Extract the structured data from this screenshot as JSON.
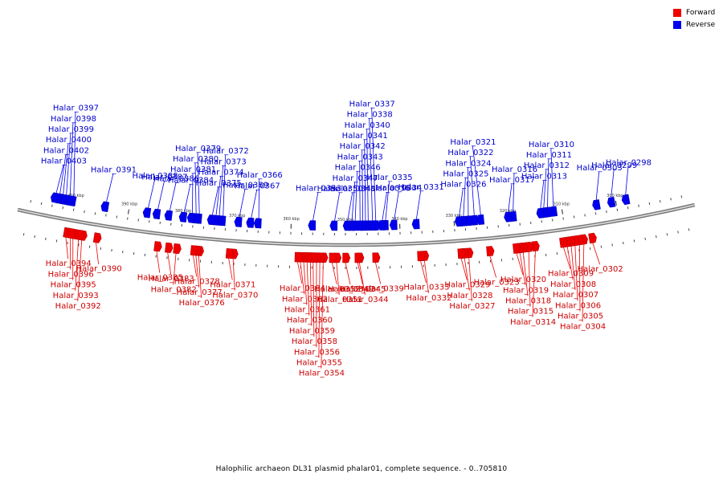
{
  "caption": "Halophilic archaeon DL31 plasmid phalar01, complete sequence. - 0..705810",
  "legend": {
    "forward_label": "Forward",
    "reverse_label": "Reverse",
    "forward_color": "#ee0000",
    "reverse_color": "#0000ee"
  },
  "scale": [
    {
      "label": "300 kbp",
      "pos": 300
    },
    {
      "label": "310 kbp",
      "pos": 310
    },
    {
      "label": "320 kbp",
      "pos": 320
    },
    {
      "label": "330 kbp",
      "pos": 330
    },
    {
      "label": "340 kbp",
      "pos": 340
    },
    {
      "label": "350 kbp",
      "pos": 350
    },
    {
      "label": "360 kbp",
      "pos": 360
    },
    {
      "label": "370 kbp",
      "pos": 370
    },
    {
      "label": "380 kbp",
      "pos": 380
    },
    {
      "label": "390 kbp",
      "pos": 390
    },
    {
      "label": "400 kbp",
      "pos": 400
    }
  ],
  "forward_genes": [
    {
      "name": "Halar_0302",
      "pos": 305.4
    },
    {
      "name": "Halar_0304",
      "pos": 307.0
    },
    {
      "name": "Halar_0305",
      "pos": 307.8
    },
    {
      "name": "Halar_0306",
      "pos": 308.6
    },
    {
      "name": "Halar_0307",
      "pos": 309.3
    },
    {
      "name": "Halar_0308",
      "pos": 310.0
    },
    {
      "name": "Halar_0309",
      "pos": 310.7
    },
    {
      "name": "Halar_0314",
      "pos": 315.8
    },
    {
      "name": "Halar_0315",
      "pos": 317.0
    },
    {
      "name": "Halar_0318",
      "pos": 318.0
    },
    {
      "name": "Halar_0319",
      "pos": 318.6
    },
    {
      "name": "Halar_0320",
      "pos": 319.2
    },
    {
      "name": "Halar_0323",
      "pos": 324.0
    },
    {
      "name": "Halar_0327",
      "pos": 327.8
    },
    {
      "name": "Halar_0328",
      "pos": 328.6
    },
    {
      "name": "Halar_0329",
      "pos": 329.2
    },
    {
      "name": "Halar_0332",
      "pos": 335.8
    },
    {
      "name": "Halar_0333",
      "pos": 336.5
    },
    {
      "name": "Halar_0339",
      "pos": 344.6
    },
    {
      "name": "Halar_0344",
      "pos": 347.5
    },
    {
      "name": "Halar_0345",
      "pos": 347.8
    },
    {
      "name": "Halar_0349",
      "pos": 350.0
    },
    {
      "name": "Halar_0351",
      "pos": 351.6
    },
    {
      "name": "Halar_0352",
      "pos": 352.4
    },
    {
      "name": "Halar_0354",
      "pos": 354.0
    },
    {
      "name": "Halar_0355",
      "pos": 354.6
    },
    {
      "name": "Halar_0356",
      "pos": 355.2
    },
    {
      "name": "Halar_0358",
      "pos": 355.8
    },
    {
      "name": "Halar_0359",
      "pos": 356.3
    },
    {
      "name": "Halar_0360",
      "pos": 356.9
    },
    {
      "name": "Halar_0361",
      "pos": 357.5
    },
    {
      "name": "Halar_0362",
      "pos": 358.1
    },
    {
      "name": "Halar_0364",
      "pos": 358.6
    },
    {
      "name": "Halar_0370",
      "pos": 370.2
    },
    {
      "name": "Halar_0371",
      "pos": 371.0
    },
    {
      "name": "Halar_0376",
      "pos": 376.4
    },
    {
      "name": "Halar_0377",
      "pos": 376.9
    },
    {
      "name": "Halar_0378",
      "pos": 377.4
    },
    {
      "name": "Halar_0382",
      "pos": 380.5
    },
    {
      "name": "Halar_0383",
      "pos": 382.0
    },
    {
      "name": "Halar_0385",
      "pos": 384.0
    },
    {
      "name": "Halar_0390",
      "pos": 395.0
    },
    {
      "name": "Halar_0392",
      "pos": 397.6
    },
    {
      "name": "Halar_0393",
      "pos": 398.2
    },
    {
      "name": "Halar_0394",
      "pos": 400.5
    },
    {
      "name": "Halar_0395",
      "pos": 399.2
    },
    {
      "name": "Halar_0396",
      "pos": 399.7
    }
  ],
  "reverse_genes": [
    {
      "name": "Halar_0298",
      "pos": 298.0
    },
    {
      "name": "Halar_0299",
      "pos": 300.7
    },
    {
      "name": "Halar_0303",
      "pos": 303.5
    },
    {
      "name": "Halar_0310",
      "pos": 311.5
    },
    {
      "name": "Halar_0311",
      "pos": 312.6
    },
    {
      "name": "Halar_0312",
      "pos": 313.3
    },
    {
      "name": "Halar_0313",
      "pos": 313.9
    },
    {
      "name": "Halar_0316",
      "pos": 319.0
    },
    {
      "name": "Halar_0317",
      "pos": 319.9
    },
    {
      "name": "Halar_0321",
      "pos": 325.0
    },
    {
      "name": "Halar_0322",
      "pos": 326.2
    },
    {
      "name": "Halar_0324",
      "pos": 327.3
    },
    {
      "name": "Halar_0325",
      "pos": 328.2
    },
    {
      "name": "Halar_0326",
      "pos": 329.0
    },
    {
      "name": "Halar_0331",
      "pos": 336.9
    },
    {
      "name": "Halar_0334",
      "pos": 341.0
    },
    {
      "name": "Halar_0335",
      "pos": 342.6
    },
    {
      "name": "Halar_0336",
      "pos": 343.2
    },
    {
      "name": "Halar_0337",
      "pos": 344.4
    },
    {
      "name": "Halar_0338",
      "pos": 345.0
    },
    {
      "name": "Halar_0340",
      "pos": 345.8
    },
    {
      "name": "Halar_0341",
      "pos": 346.3
    },
    {
      "name": "Halar_0342",
      "pos": 346.8
    },
    {
      "name": "Halar_0343",
      "pos": 347.3
    },
    {
      "name": "Halar_0346",
      "pos": 348.2
    },
    {
      "name": "Halar_0347",
      "pos": 348.8
    },
    {
      "name": "Halar_0348",
      "pos": 349.6
    },
    {
      "name": "Halar_0350",
      "pos": 352.0
    },
    {
      "name": "Halar_0353",
      "pos": 356.0
    },
    {
      "name": "Halar_0366",
      "pos": 366.0
    },
    {
      "name": "Halar_0367",
      "pos": 367.4
    },
    {
      "name": "Halar_0369",
      "pos": 369.6
    },
    {
      "name": "Halar_0372",
      "pos": 372.6
    },
    {
      "name": "Halar_0373",
      "pos": 373.3
    },
    {
      "name": "Halar_0374",
      "pos": 373.9
    },
    {
      "name": "Halar_0375",
      "pos": 374.6
    },
    {
      "name": "Halar_0379",
      "pos": 377.0
    },
    {
      "name": "Halar_0380",
      "pos": 377.6
    },
    {
      "name": "Halar_0381",
      "pos": 378.3
    },
    {
      "name": "Halar_0384",
      "pos": 379.8
    },
    {
      "name": "Halar_0386",
      "pos": 382.5
    },
    {
      "name": "Halar_0387",
      "pos": 384.7
    },
    {
      "name": "Halar_0388",
      "pos": 386.5
    },
    {
      "name": "Halar_0391",
      "pos": 394.3
    },
    {
      "name": "Halar_0397",
      "pos": 400.4
    },
    {
      "name": "Halar_0398",
      "pos": 401.1
    },
    {
      "name": "Halar_0399",
      "pos": 401.8
    },
    {
      "name": "Halar_0400",
      "pos": 402.4
    },
    {
      "name": "Halar_0402",
      "pos": 403.0
    },
    {
      "name": "Halar_0403",
      "pos": 403.7
    }
  ]
}
